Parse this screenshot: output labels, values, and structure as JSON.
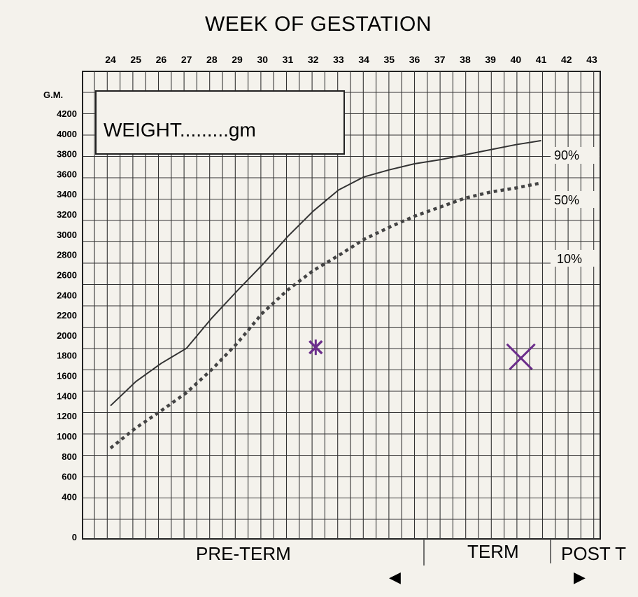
{
  "chart_data": {
    "type": "line",
    "title": "WEEK OF GESTATION",
    "box_label": "WEIGHT.........gm",
    "y_unit_label": "G.M.",
    "x_ticks": [
      "24",
      "25",
      "26",
      "27",
      "28",
      "29",
      "30",
      "31",
      "32",
      "33",
      "34",
      "35",
      "36",
      "37",
      "38",
      "39",
      "40",
      "41",
      "42",
      "43"
    ],
    "y_ticks": [
      "4200",
      "4000",
      "3800",
      "3600",
      "3400",
      "3200",
      "3000",
      "2800",
      "2600",
      "2400",
      "2200",
      "2000",
      "1800",
      "1600",
      "1400",
      "1200",
      "1000",
      "800",
      "600",
      "400",
      "0"
    ],
    "xlim": [
      24,
      43
    ],
    "ylim": [
      0,
      4200
    ],
    "series": [
      {
        "name": "90%",
        "style": "solid",
        "color": "#333333",
        "x": [
          24,
          25,
          26,
          27,
          28,
          29,
          30,
          31,
          32,
          33,
          34,
          35,
          36,
          37,
          38,
          39,
          40,
          41
        ],
        "values": [
          1300,
          1540,
          1720,
          1870,
          2170,
          2440,
          2700,
          2980,
          3230,
          3440,
          3570,
          3640,
          3700,
          3740,
          3790,
          3840,
          3890,
          3930
        ]
      },
      {
        "name": "50%",
        "style": "dotted",
        "color": "#444444",
        "x": [
          24,
          25,
          26,
          27,
          28,
          29,
          30,
          31,
          32,
          33,
          34,
          35,
          36,
          37,
          38,
          39,
          40,
          41
        ],
        "values": [
          880,
          1080,
          1250,
          1430,
          1660,
          1920,
          2220,
          2450,
          2640,
          2790,
          2950,
          3070,
          3180,
          3270,
          3360,
          3420,
          3460,
          3510
        ]
      }
    ],
    "percentile_labels": [
      "90%",
      "50%",
      "10%"
    ],
    "markers": [
      {
        "x": 32.1,
        "y": 1880,
        "color": "#6b2d8b",
        "style": "star"
      },
      {
        "x": 40.2,
        "y": 1800,
        "color": "#6b2d8b",
        "style": "cross"
      }
    ],
    "bands": [
      {
        "label": "PRE-TERM",
        "arrow": "◀"
      },
      {
        "label": "TERM",
        "arrow": ""
      },
      {
        "label": "POST T",
        "arrow": "▶"
      }
    ],
    "grid": true,
    "legend": "right"
  }
}
